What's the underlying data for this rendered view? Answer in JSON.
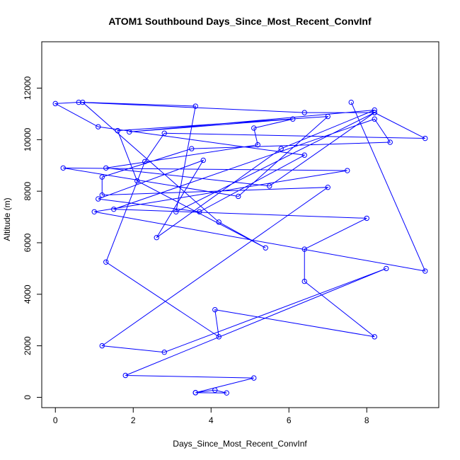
{
  "chart_data": {
    "type": "line",
    "title": "ATOM1 Southbound Days_Since_Most_Recent_ConvInf",
    "xlabel": "Days_Since_Most_Recent_ConvInf",
    "ylabel": "Altitude (m)",
    "xlim": [
      -0.35,
      9.85
    ],
    "ylim": [
      -400,
      13800
    ],
    "xticks": [
      0,
      2,
      4,
      6,
      8
    ],
    "yticks": [
      0,
      2000,
      4000,
      6000,
      8000,
      10000,
      12000
    ],
    "grid": false,
    "series_color": "#0000ff",
    "points": [
      [
        3.6,
        180
      ],
      [
        4.1,
        280
      ],
      [
        4.4,
        170
      ],
      [
        3.6,
        180
      ],
      [
        5.1,
        750
      ],
      [
        1.8,
        850
      ],
      [
        8.5,
        5000
      ],
      [
        2.8,
        1750
      ],
      [
        1.2,
        2000
      ],
      [
        7.0,
        8150
      ],
      [
        1.2,
        7850
      ],
      [
        1.2,
        8550
      ],
      [
        3.5,
        9650
      ],
      [
        8.6,
        9900
      ],
      [
        8.2,
        10800
      ],
      [
        1.5,
        7300
      ],
      [
        8.0,
        6950
      ],
      [
        6.4,
        5750
      ],
      [
        6.4,
        4500
      ],
      [
        8.2,
        2350
      ],
      [
        4.1,
        3400
      ],
      [
        4.2,
        2350
      ],
      [
        1.3,
        5250
      ],
      [
        2.3,
        9150
      ],
      [
        2.8,
        10250
      ],
      [
        9.5,
        10050
      ],
      [
        8.2,
        11050
      ],
      [
        5.5,
        8200
      ],
      [
        1.3,
        8900
      ],
      [
        5.2,
        9800
      ],
      [
        5.1,
        10450
      ],
      [
        6.1,
        10800
      ],
      [
        1.9,
        10300
      ],
      [
        8.2,
        11150
      ],
      [
        5.8,
        9650
      ],
      [
        2.6,
        6200
      ],
      [
        3.8,
        9200
      ],
      [
        1.1,
        7700
      ],
      [
        3.7,
        7200
      ],
      [
        6.4,
        9400
      ],
      [
        1.1,
        10500
      ],
      [
        0.0,
        11400
      ],
      [
        0.6,
        11450
      ],
      [
        6.4,
        11050
      ],
      [
        8.2,
        11050
      ],
      [
        3.1,
        7200
      ],
      [
        3.6,
        11300
      ],
      [
        0.7,
        11450
      ],
      [
        4.2,
        6800
      ],
      [
        5.4,
        5800
      ],
      [
        2.1,
        8400
      ],
      [
        1.6,
        10350
      ],
      [
        7.0,
        10900
      ],
      [
        4.7,
        7800
      ],
      [
        0.2,
        8900
      ],
      [
        7.5,
        8800
      ],
      [
        1.0,
        7200
      ],
      [
        9.5,
        4900
      ],
      [
        7.6,
        11450
      ]
    ]
  }
}
